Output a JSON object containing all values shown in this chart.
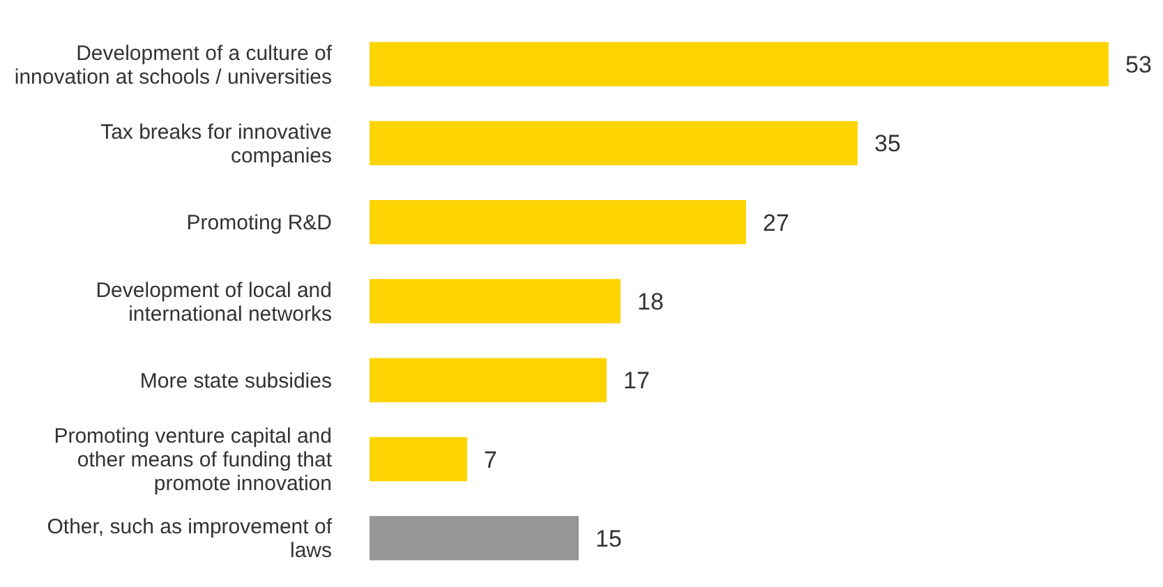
{
  "chart_data": {
    "type": "bar",
    "orientation": "horizontal",
    "categories": [
      "Development of a culture of innovation at schools / universities",
      "Tax breaks for innovative companies",
      "Promoting R&D",
      "Development of local and international networks",
      "More state subsidies",
      "Promoting venture capital and other means of funding that promote innovation",
      "Other, such as improvement of laws"
    ],
    "values": [
      53,
      35,
      27,
      18,
      17,
      7,
      15
    ],
    "colors": [
      "#ffd400",
      "#ffd400",
      "#ffd400",
      "#ffd400",
      "#ffd400",
      "#ffd400",
      "#969699"
    ],
    "data_labels": true
  }
}
